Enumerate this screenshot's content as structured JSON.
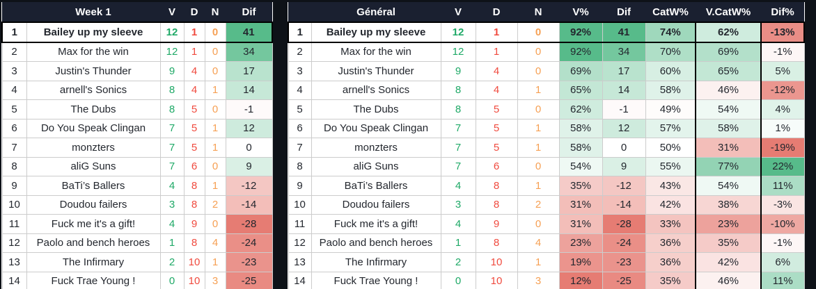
{
  "colors": {
    "page_bg": "#0e1218",
    "header_bg": "#1a2030",
    "header_text": "#ffffff",
    "grid_line": "#cccccc",
    "text": "#23272e",
    "win_green": "#1fa967",
    "loss_red": "#f04a3e",
    "tie_orange": "#f6a054",
    "scale_positive": "#57bb8a",
    "scale_negative": "#e67c73",
    "scale_neutral": "#ffffff"
  },
  "scales": {
    "dif": {
      "min": -28,
      "mid": 0,
      "max": 41
    },
    "pct": {
      "min": 12,
      "mid": 50,
      "max": 92
    },
    "difpct": {
      "min": -15,
      "mid": 0,
      "max": 22
    }
  },
  "tables": [
    {
      "id": "week1",
      "columns": [
        {
          "key": "rank",
          "label": "",
          "type": "rank"
        },
        {
          "key": "team",
          "label": "Week 1",
          "type": "team"
        },
        {
          "key": "v",
          "label": "V",
          "type": "num",
          "color": "win_green"
        },
        {
          "key": "d",
          "label": "D",
          "type": "num",
          "color": "loss_red"
        },
        {
          "key": "n",
          "label": "N",
          "type": "num",
          "color": "tie_orange"
        },
        {
          "key": "dif",
          "label": "Dif",
          "type": "scale",
          "scale": "dif"
        }
      ],
      "rows": [
        [
          1,
          "Bailey up my sleeve",
          12,
          1,
          0,
          41
        ],
        [
          2,
          "Max for the win",
          12,
          1,
          0,
          34
        ],
        [
          3,
          "Justin's Thunder",
          9,
          4,
          0,
          17
        ],
        [
          4,
          "arnell's Sonics",
          8,
          4,
          1,
          14
        ],
        [
          5,
          "The Dubs",
          8,
          5,
          0,
          -1
        ],
        [
          6,
          "Do You Speak Clingan",
          7,
          5,
          1,
          12
        ],
        [
          7,
          "monzters",
          7,
          5,
          1,
          0
        ],
        [
          8,
          "aliG Suns",
          7,
          6,
          0,
          9
        ],
        [
          9,
          "BaTi’s Ballers",
          4,
          8,
          1,
          -12
        ],
        [
          10,
          "Doudou failers",
          3,
          8,
          2,
          -14
        ],
        [
          11,
          "Fuck me it's a gift!",
          4,
          9,
          0,
          -28
        ],
        [
          12,
          "Paolo and bench heroes",
          1,
          8,
          4,
          -24
        ],
        [
          13,
          "The Infirmary",
          2,
          10,
          1,
          -23
        ],
        [
          14,
          "Fuck Trae Young !",
          0,
          10,
          3,
          -25
        ]
      ]
    },
    {
      "id": "general",
      "columns": [
        {
          "key": "rank",
          "label": "",
          "type": "rank"
        },
        {
          "key": "team",
          "label": "Général",
          "type": "team"
        },
        {
          "key": "v",
          "label": "V",
          "type": "num",
          "color": "win_green"
        },
        {
          "key": "d",
          "label": "D",
          "type": "num",
          "color": "loss_red"
        },
        {
          "key": "n",
          "label": "N",
          "type": "num",
          "color": "tie_orange"
        },
        {
          "key": "v_pct",
          "label": "V%",
          "type": "scale",
          "scale": "pct",
          "suffix": "%"
        },
        {
          "key": "dif",
          "label": "Dif",
          "type": "scale",
          "scale": "dif"
        },
        {
          "key": "catw_pct",
          "label": "CatW%",
          "type": "scale",
          "scale": "pct",
          "suffix": "%"
        },
        {
          "key": "vcatw_pct",
          "label": "V.CatW%",
          "type": "scale",
          "scale": "pct",
          "suffix": "%",
          "boxed": true
        },
        {
          "key": "dif_pct",
          "label": "Dif%",
          "type": "scale",
          "scale": "difpct",
          "suffix": "%"
        }
      ],
      "rows": [
        [
          1,
          "Bailey up my sleeve",
          12,
          1,
          0,
          92,
          41,
          74,
          62,
          -13
        ],
        [
          2,
          "Max for the win",
          12,
          1,
          0,
          92,
          34,
          70,
          69,
          -1
        ],
        [
          3,
          "Justin's Thunder",
          9,
          4,
          0,
          69,
          17,
          60,
          65,
          5
        ],
        [
          4,
          "arnell's Sonics",
          8,
          4,
          1,
          65,
          14,
          58,
          46,
          -12
        ],
        [
          5,
          "The Dubs",
          8,
          5,
          0,
          62,
          -1,
          49,
          54,
          4
        ],
        [
          6,
          "Do You Speak Clingan",
          7,
          5,
          1,
          58,
          12,
          57,
          58,
          1
        ],
        [
          7,
          "monzters",
          7,
          5,
          1,
          58,
          0,
          50,
          31,
          -19
        ],
        [
          8,
          "aliG Suns",
          7,
          6,
          0,
          54,
          9,
          55,
          77,
          22
        ],
        [
          9,
          "BaTi’s Ballers",
          4,
          8,
          1,
          35,
          -12,
          43,
          54,
          11
        ],
        [
          10,
          "Doudou failers",
          3,
          8,
          2,
          31,
          -14,
          42,
          38,
          -3
        ],
        [
          11,
          "Fuck me it's a gift!",
          4,
          9,
          0,
          31,
          -28,
          33,
          23,
          -10
        ],
        [
          12,
          "Paolo and bench heroes",
          1,
          8,
          4,
          23,
          -24,
          36,
          35,
          -1
        ],
        [
          13,
          "The Infirmary",
          2,
          10,
          1,
          19,
          -23,
          36,
          42,
          6
        ],
        [
          14,
          "Fuck Trae Young !",
          0,
          10,
          3,
          12,
          -25,
          35,
          46,
          11
        ]
      ]
    }
  ]
}
